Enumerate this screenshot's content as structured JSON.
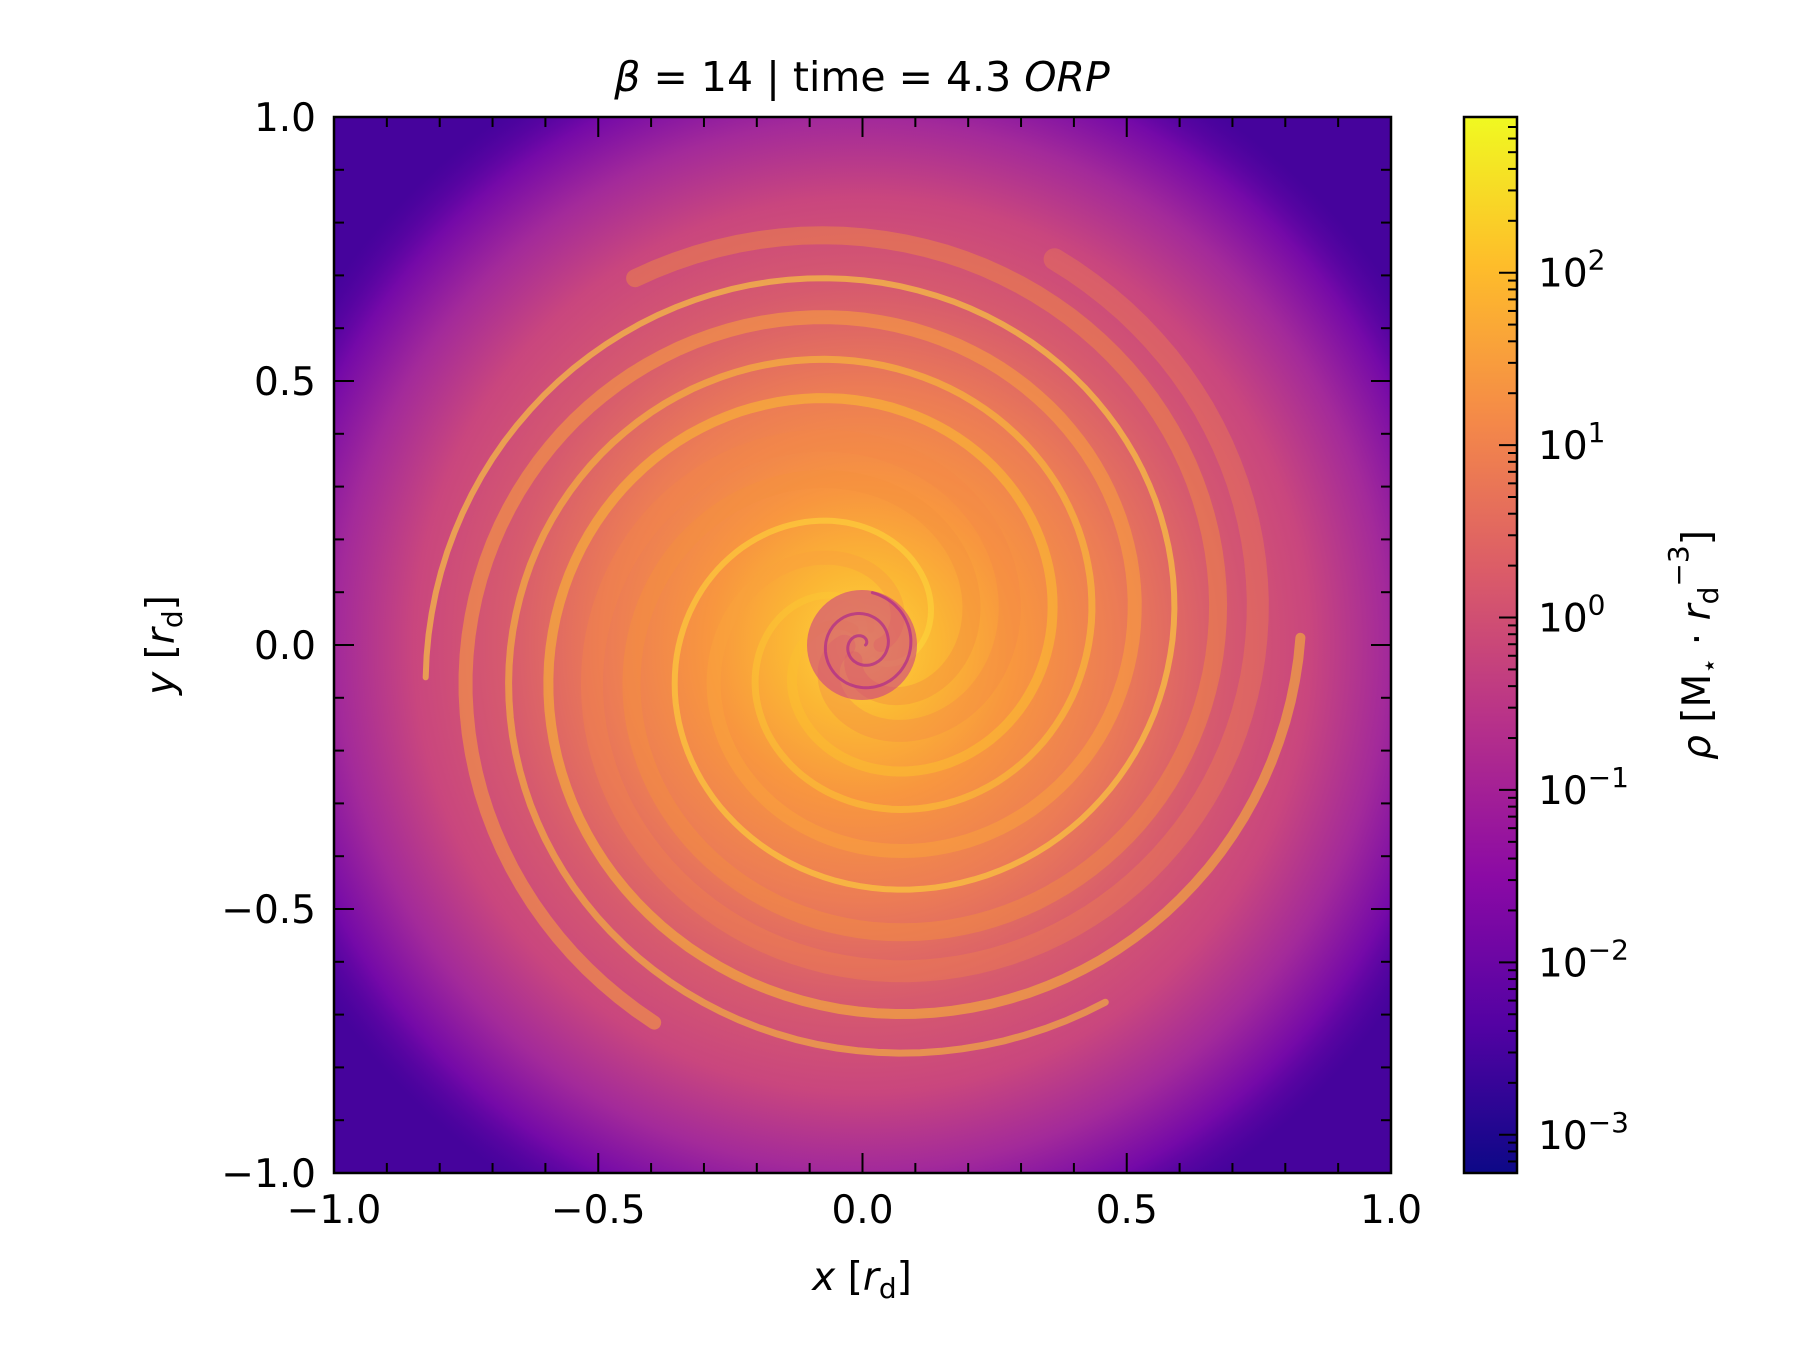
{
  "chart_data": {
    "type": "heatmap",
    "title_parts": {
      "beta_symbol": "β",
      "beta_text": " = 14 | time = 4.3 ",
      "unit": "ORP"
    },
    "xlabel": {
      "symbol": "x",
      "open": " [",
      "var": "r",
      "sub": "d",
      "close": "]"
    },
    "ylabel": {
      "symbol": "y",
      "open": " [",
      "var": "r",
      "sub": "d",
      "close": "]"
    },
    "xlim": [
      -1.0,
      1.0
    ],
    "ylim": [
      -1.0,
      1.0
    ],
    "xticks": [
      -1.0,
      -0.5,
      0.0,
      0.5,
      1.0
    ],
    "yticks": [
      -1.0,
      -0.5,
      0.0,
      0.5,
      1.0
    ],
    "xtick_labels": [
      "−1.0",
      "−0.5",
      "0.0",
      "0.5",
      "1.0"
    ],
    "ytick_labels": [
      "−1.0",
      "−0.5",
      "0.0",
      "0.5",
      "1.0"
    ],
    "colorbar": {
      "scale": "log",
      "range": [
        0.0006,
        800
      ],
      "colormap": "plasma",
      "ticks": [
        0.001,
        0.01,
        0.1,
        1,
        10,
        100
      ],
      "tick_labels": [
        {
          "base": "10",
          "exp": "−3"
        },
        {
          "base": "10",
          "exp": "−2"
        },
        {
          "base": "10",
          "exp": "−1"
        },
        {
          "base": "10",
          "exp": "0"
        },
        {
          "base": "10",
          "exp": "1"
        },
        {
          "base": "10",
          "exp": "2"
        }
      ],
      "label": {
        "rho": "ρ",
        "open": " [M",
        "star": "⋆",
        "dot": " · ",
        "var": "r",
        "sub": "d",
        "sup": "−3",
        "close": "]"
      }
    },
    "colors": {
      "plasma_0": "#0d0887",
      "plasma_1": "#5302a3",
      "plasma_2": "#8b0aa5",
      "plasma_3": "#b83289",
      "plasma_4": "#db5c68",
      "plasma_5": "#f48849",
      "plasma_6": "#febd2a",
      "plasma_7": "#f0f921"
    }
  }
}
